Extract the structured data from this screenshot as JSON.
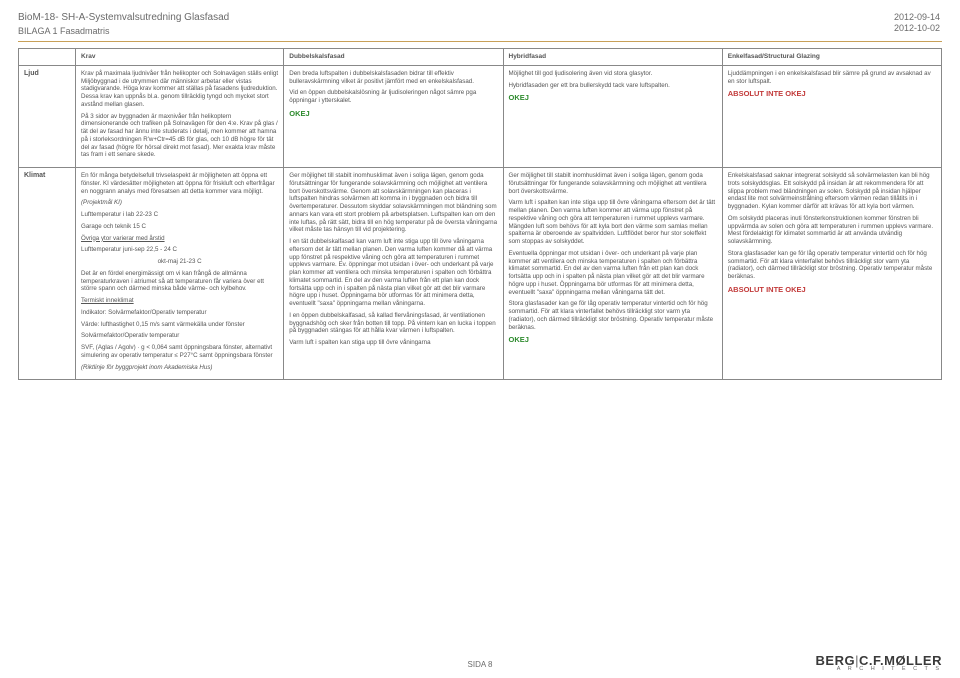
{
  "header": {
    "title": "BioM-18- SH-A-Systemvalsutredning Glasfasad",
    "subtitle": "BILAGA 1 Fasadmatris",
    "date1": "2012-09-14",
    "date2": "2012-10-02"
  },
  "columns": {
    "label": "",
    "krav": "Krav",
    "dub": "Dubbelskalsfasad",
    "hyb": "Hybridfasad",
    "enk": "Enkelfasad/Structural Glazing"
  },
  "rows": {
    "ljud": {
      "label": "Ljud",
      "krav_p1": "Krav på maximala ljudnivåer från helikopter och Solnavägen ställs enligt Miljöbyggnad i de utrymmen där människor arbetar eller vistas stadigvarande. Höga krav kommer att ställas på fasadens ljudreduktion. Dessa krav kan uppnås bl.a. genom tillräcklig tyngd och mycket stort avstånd mellan glasen.",
      "krav_p2": "På 3 sidor av byggnaden är maxnivåer från helikoptern dimensionerande och trafiken på Solnavägen för den 4:e. Krav på glas / tät del av fasad har ännu inte studerats i detalj, men kommer att hamna på i storleksordningen R'w+Ctr=45 dB för glas, och 10 dB högre för tät del av fasad (högre för hörsal direkt mot fasad). Mer exakta krav måste tas fram i ett senare skede.",
      "dub_p1": "Den breda luftspalten i dubbelskalsfasaden bidrar till effektiv bulleravskärmning vilket är positivt jämfört med en enkelskalsfasad.",
      "dub_p2": "Vid en öppen dubbelskalslösning är ljudisoleringen något sämre pga öppningar i ytterskalet.",
      "dub_status": "OKEJ",
      "hyb_p1": "Möjlighet till god ljudisolering även vid stora glasytor.",
      "hyb_p2": "Hybridfasaden ger ett bra bullerskydd tack vare luftspalten.",
      "hyb_status": "OKEJ",
      "enk_p1": "Ljuddämpningen i en enkelskalsfasad blir sämre på grund av avsaknad av en stor luftspalt.",
      "enk_status": "ABSOLUT INTE OKEJ"
    },
    "klimat": {
      "label": "Klimat",
      "krav_p1": "En för många betydelsefull trivselaspekt är möjligheten att öppna ett fönster. KI värdesätter möjligheten att öppna för friskluft och efterfrågar en noggrann analys med föresatsen att detta kommer vara möjligt.",
      "krav_p1note": "(Projektmål KI)",
      "krav_p2a": "Lufttemperatur i lab 22-23 C",
      "krav_p2b": "Garage och teknik  15 C",
      "krav_p3_label": "Övriga ytor varierar med årstid",
      "krav_p3a": "Lufttemperatur juni-sep 22,5 - 24 C",
      "krav_p3b": "okt-maj 21-23 C",
      "krav_p4": "Det är en fördel energimässigt om vi kan frångå de allmänna temperaturkraven i atriumet så att temperaturen får variera över ett större spann och därmed minska både värme- och kylbehov.",
      "krav_p5_label": "Termiskt inneklimat",
      "krav_p5a": "Indikator: Solvärmefaktor/Operativ temperatur",
      "krav_p5b": "Värde: lufthastighet 0,15 m/s samt värmekälla under fönster",
      "krav_p5c": "Solvärmefaktor/Operativ temperatur",
      "krav_p5d": "SVF, (Aglas / Agolv) · g < 0,064 samt öppningsbara fönster, alternativt simulering av operativ temperatur ≤ P27°C samt öppningsbara fönster",
      "krav_p5e": "(Riktlinje för byggprojekt inom Akademiska Hus)",
      "dub_p1": "Ger möjlighet till stabilt inomhusklimat även i soliga lägen, genom goda förutsättningar för fungerande solavskärmning och möjlighet att ventilera bort överskottsvärme. Genom att solavskärmningen kan placeras i luftspalten hindras solvärmen att komma in i byggnaden och bidra till övertemperaturer. Dessutom skyddar solavskärmningen mot bländning som annars kan vara ett stort problem på arbetsplatsen. Luftspalten kan om den inte luftas, på rätt sätt, bidra till en hög temperatur på de översta våningarna vilket måste tas hänsyn till vid projektering.",
      "dub_p2": "I en tät dubbelskalfasad kan varm luft inte stiga upp till övre våningarna eftersom det är tätt mellan planen. Den varma luften kommer då att värma upp fönstret på respektive våning och göra att temperaturen i rummet upplevs varmare. Ev. öppningar mot utsidan i över- och underkant på varje plan kommer att ventilera och minska temperaturen i spalten och förbättra klimatet sommartid. En del av den varma luften från ett plan kan dock fortsätta upp och in i spalten på nästa plan vilket gör att det blir varmare högre upp i huset. Öppningarna bör utformas för att minimera detta, eventuellt \"saxa\" öppningarna mellan våningarna.",
      "dub_p3": "I en öppen dubbelskalfasad, så kallad flervåningsfasad, är ventilationen byggnadshög och sker från botten till topp. På vintern kan en lucka i toppen på byggnaden stängas för att hålla kvar värmen i luftspalten.",
      "dub_p4": "Varm luft i spalten kan stiga upp till övre våningarna",
      "hyb_p1": "Ger möjlighet till stabilt inomhusklimat även i soliga lägen, genom goda förutsättningar för fungerande solavskärmning och möjlighet att ventilera bort överskottsvärme.",
      "hyb_p2": "Varm luft i spalten kan inte stiga upp till övre våningarna eftersom det är tätt mellan planen. Den varma luften kommer att värma upp fönstret på respektive våning och göra att temperaturen i rummet upplevs varmare. Mängden luft som behövs för att kyla bort den värme som samlas mellan spalterna är oberoende av spaltvidden. Luftflödet beror hur stor soleffekt som stoppas av solskyddet.",
      "hyb_p3": "Eventuella öppningar mot utsidan i över- och underkant på varje plan kommer att ventilera och minska temperaturen i spalten och förbättra klimatet sommartid. En del av den varma luften från ett plan kan dock fortsätta upp och in i spalten på nästa plan vilket gör att det blir varmare högre upp i huset. Öppningarna bör utformas för att minimera detta, eventuellt \"saxa\" öppningarna mellan våningarna tätt det.",
      "hyb_p4": "Stora glasfasader kan ge för låg operativ temperatur vintertid och för hög sommartid. För att klara vinterfallet behövs tillräckligt stor varm yta (radiator), och därmed tillräckligt stor bröstning. Operativ temperatur måste beräknas.",
      "hyb_status": "OKEJ",
      "enk_p1": "Enkelskalsfasad saknar integrerat solskydd så solvärmelasten kan bli hög trots solskyddsglas. Ett solskydd på insidan är att rekommendera för att slippa problem med bländningen av solen. Solskydd på insidan hjälper endast lite mot solvärmeinstrålning eftersom värmen redan tillåtits in i byggnaden. Kylan kommer därför att krävas för att kyla bort värmen.",
      "enk_p2": "Om solskydd placeras inuti fönsterkonstruktionen kommer fönstren bli uppvärmda av solen och göra att temperaturen i rummen upplevs varmare. Mest fördelaktigt för klimatet sommartid är att använda utvändig solavskärmning.",
      "enk_p3": "Stora glasfasader kan ge för låg operativ temperatur vintertid och för hög sommartid. För att klara vinterfallet behövs tillräckligt stor varm yta (radiator), och därmed tillräckligt stor bröstning. Operativ temperatur måste beräknas.",
      "enk_status": "ABSOLUT INTE OKEJ"
    }
  },
  "status_labels": {
    "ok": "OKEJ",
    "notok": "ABSOLUT INTE OKEJ"
  },
  "footer": {
    "page": "SIDA 8"
  },
  "logo": {
    "main_a": "BERG",
    "main_b": "C.F.MØLLER",
    "sub": "A R C H I T E C T S"
  },
  "colors": {
    "rule": "#c8a058",
    "text": "#555555",
    "ok": "#2e8b2e",
    "notok": "#c23a3a",
    "border": "#888888"
  }
}
